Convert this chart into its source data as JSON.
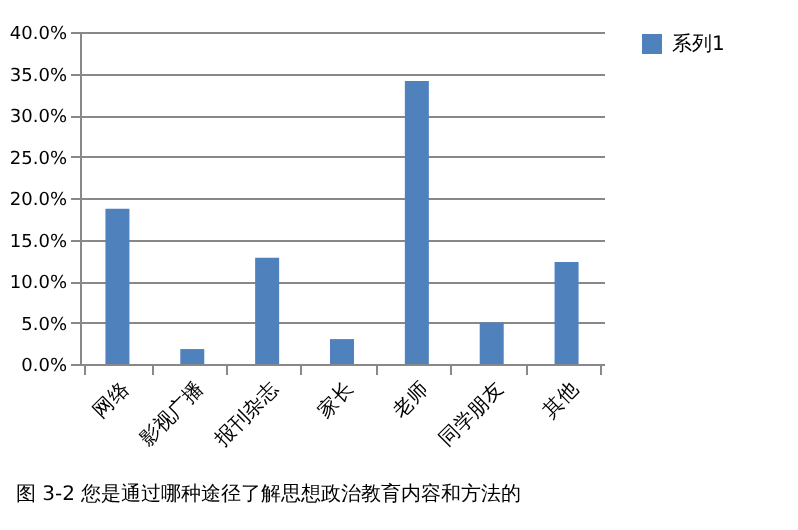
{
  "chart_data": {
    "type": "bar",
    "categories": [
      "网络",
      "影视广播",
      "报刊杂志",
      "家长",
      "老师",
      "同学朋友",
      "其他"
    ],
    "series": [
      {
        "name": "系列1",
        "color": "#4f81bd",
        "values": [
          18.7,
          1.8,
          12.8,
          3.0,
          34.1,
          5.0,
          12.3
        ]
      }
    ],
    "ylim": [
      0,
      40
    ],
    "yticks": [
      {
        "value": 0,
        "label": "0.0%"
      },
      {
        "value": 5,
        "label": "5.0%"
      },
      {
        "value": 10,
        "label": "10.0%"
      },
      {
        "value": 15,
        "label": "15.0%"
      },
      {
        "value": 20,
        "label": "20.0%"
      },
      {
        "value": 25,
        "label": "25.0%"
      },
      {
        "value": 30,
        "label": "30.0%"
      },
      {
        "value": 35,
        "label": "35.0%"
      },
      {
        "value": 40,
        "label": "40.0%"
      }
    ],
    "grid": "y",
    "legend": "right",
    "annotations": [
      "图 3-2 您是通过哪种途径了解思想政治教育内容和方法的"
    ]
  }
}
